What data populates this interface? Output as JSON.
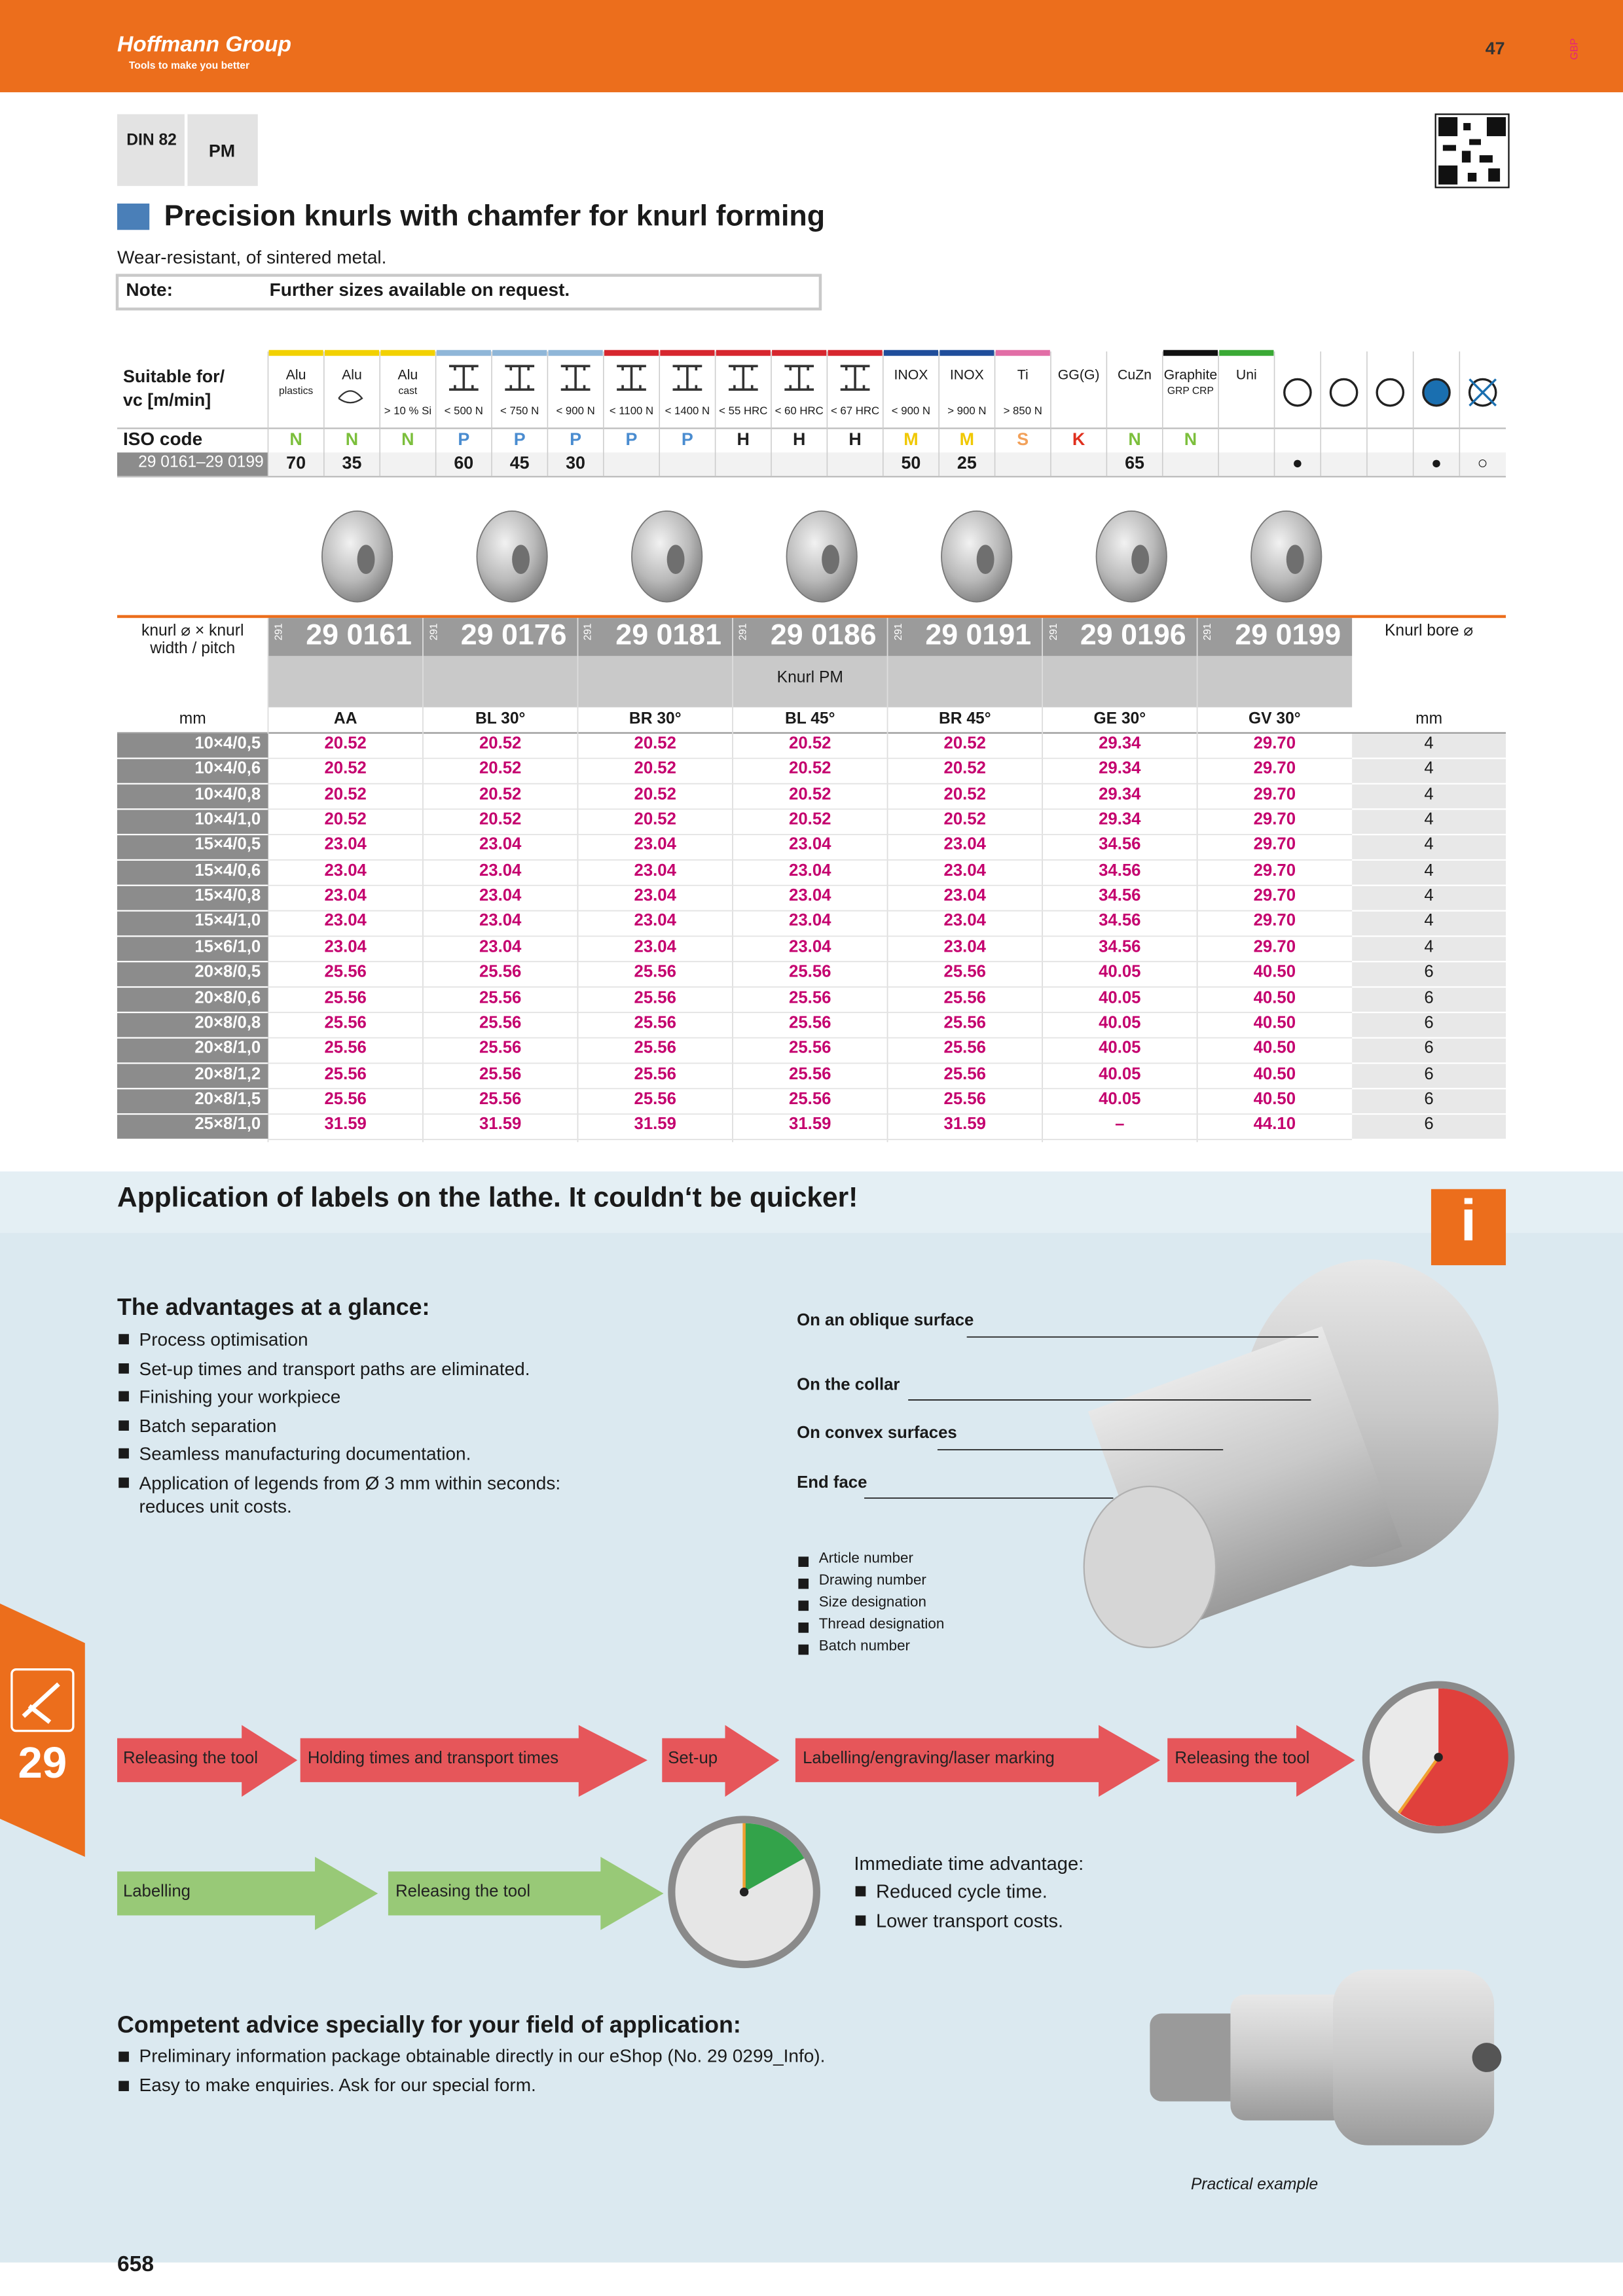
{
  "header": {
    "brand": "Hoffmann Group",
    "tagline": "Tools to make you better",
    "page_tab": "47",
    "region": "GBP"
  },
  "badges": [
    "DIN 82",
    "PM"
  ],
  "title": "Precision knurls with chamfer for knurl forming",
  "subtitle": "Wear-resistant, of sintered metal.",
  "note": {
    "label": "Note:",
    "text": "Further sizes available on request."
  },
  "suitability": {
    "label_lines": [
      "Suitable for/",
      "vc [m/min]"
    ],
    "iso_label": "ISO code",
    "range_label": "29 0161–29 0199",
    "columns": [
      {
        "name": "Alu",
        "sub": "plastics",
        "limit": null,
        "iso": "N",
        "value": 70,
        "color": "#f2d100"
      },
      {
        "name": "Alu",
        "sub": null,
        "limit": null,
        "iso": "N",
        "value": 35,
        "color": "#f2d100"
      },
      {
        "name": "Alu",
        "sub": "cast",
        "limit": "> 10 % Si",
        "iso": "N",
        "value": null,
        "color": "#f2d100"
      },
      {
        "name": null,
        "sub": null,
        "limit": "< 500 N",
        "iso": "P",
        "value": 60,
        "color": "#8fb6d8"
      },
      {
        "name": null,
        "sub": null,
        "limit": "< 750 N",
        "iso": "P",
        "value": 45,
        "color": "#8fb6d8"
      },
      {
        "name": null,
        "sub": null,
        "limit": "< 900 N",
        "iso": "P",
        "value": 30,
        "color": "#8fb6d8"
      },
      {
        "name": null,
        "sub": null,
        "limit": "< 1100 N",
        "iso": "P",
        "value": null,
        "color": "#d7262e"
      },
      {
        "name": null,
        "sub": null,
        "limit": "< 1400 N",
        "iso": "P",
        "value": null,
        "color": "#d7262e"
      },
      {
        "name": null,
        "sub": null,
        "limit": "< 55 HRC",
        "iso": "H",
        "value": null,
        "color": "#d7262e"
      },
      {
        "name": null,
        "sub": null,
        "limit": "< 60 HRC",
        "iso": "H",
        "value": null,
        "color": "#d7262e"
      },
      {
        "name": null,
        "sub": null,
        "limit": "< 67 HRC",
        "iso": "H",
        "value": null,
        "color": "#d7262e"
      },
      {
        "name": "INOX",
        "sub": null,
        "limit": "< 900 N",
        "iso": "M",
        "value": 50,
        "color": "#1f4d9b"
      },
      {
        "name": "INOX",
        "sub": null,
        "limit": "> 900 N",
        "iso": "M",
        "value": 25,
        "color": "#1f4d9b"
      },
      {
        "name": "Ti",
        "sub": null,
        "limit": "> 850 N",
        "iso": "S",
        "value": null,
        "color": "#e26ea6"
      },
      {
        "name": "GG(G)",
        "sub": null,
        "limit": null,
        "iso": "K",
        "value": null,
        "color": null
      },
      {
        "name": "CuZn",
        "sub": null,
        "limit": null,
        "iso": "N",
        "value": 65,
        "color": null
      },
      {
        "name": "Graphite",
        "sub": "GRP CRP",
        "limit": null,
        "iso": "N",
        "value": null,
        "color": "#111111"
      },
      {
        "name": "Uni",
        "sub": null,
        "limit": null,
        "iso": null,
        "value": null,
        "color": "#3aa935"
      }
    ],
    "iso_colors": {
      "N": "#7cbf3c",
      "P": "#4a8cd0",
      "H": "#222222",
      "M": "#f0c800",
      "S": "#f2a15a",
      "K": "#e0301e"
    },
    "symbol_marks": [
      "●",
      null,
      null,
      "●",
      "○"
    ]
  },
  "products": {
    "label_lines": [
      "knurl ⌀ × knurl",
      "width / pitch"
    ],
    "bore_label": "Knurl bore ⌀",
    "type_label": "Knurl PM",
    "unit": "mm",
    "bore_unit": "mm",
    "article_prefix": "291",
    "articles": [
      "29 0161",
      "29 0176",
      "29 0181",
      "29 0186",
      "29 0191",
      "29 0196",
      "29 0199"
    ],
    "profiles": [
      "AA",
      "BL 30°",
      "BR 30°",
      "BL 45°",
      "BR 45°",
      "GE 30°",
      "GV 30°"
    ],
    "rows": [
      {
        "size": "10×4/0,5",
        "prices": [
          "20.52",
          "20.52",
          "20.52",
          "20.52",
          "20.52",
          "29.34",
          "29.70"
        ],
        "bore": 4
      },
      {
        "size": "10×4/0,6",
        "prices": [
          "20.52",
          "20.52",
          "20.52",
          "20.52",
          "20.52",
          "29.34",
          "29.70"
        ],
        "bore": 4
      },
      {
        "size": "10×4/0,8",
        "prices": [
          "20.52",
          "20.52",
          "20.52",
          "20.52",
          "20.52",
          "29.34",
          "29.70"
        ],
        "bore": 4
      },
      {
        "size": "10×4/1,0",
        "prices": [
          "20.52",
          "20.52",
          "20.52",
          "20.52",
          "20.52",
          "29.34",
          "29.70"
        ],
        "bore": 4
      },
      {
        "size": "15×4/0,5",
        "prices": [
          "23.04",
          "23.04",
          "23.04",
          "23.04",
          "23.04",
          "34.56",
          "29.70"
        ],
        "bore": 4
      },
      {
        "size": "15×4/0,6",
        "prices": [
          "23.04",
          "23.04",
          "23.04",
          "23.04",
          "23.04",
          "34.56",
          "29.70"
        ],
        "bore": 4
      },
      {
        "size": "15×4/0,8",
        "prices": [
          "23.04",
          "23.04",
          "23.04",
          "23.04",
          "23.04",
          "34.56",
          "29.70"
        ],
        "bore": 4
      },
      {
        "size": "15×4/1,0",
        "prices": [
          "23.04",
          "23.04",
          "23.04",
          "23.04",
          "23.04",
          "34.56",
          "29.70"
        ],
        "bore": 4
      },
      {
        "size": "15×6/1,0",
        "prices": [
          "23.04",
          "23.04",
          "23.04",
          "23.04",
          "23.04",
          "34.56",
          "29.70"
        ],
        "bore": 4
      },
      {
        "size": "20×8/0,5",
        "prices": [
          "25.56",
          "25.56",
          "25.56",
          "25.56",
          "25.56",
          "40.05",
          "40.50"
        ],
        "bore": 6
      },
      {
        "size": "20×8/0,6",
        "prices": [
          "25.56",
          "25.56",
          "25.56",
          "25.56",
          "25.56",
          "40.05",
          "40.50"
        ],
        "bore": 6
      },
      {
        "size": "20×8/0,8",
        "prices": [
          "25.56",
          "25.56",
          "25.56",
          "25.56",
          "25.56",
          "40.05",
          "40.50"
        ],
        "bore": 6
      },
      {
        "size": "20×8/1,0",
        "prices": [
          "25.56",
          "25.56",
          "25.56",
          "25.56",
          "25.56",
          "40.05",
          "40.50"
        ],
        "bore": 6
      },
      {
        "size": "20×8/1,2",
        "prices": [
          "25.56",
          "25.56",
          "25.56",
          "25.56",
          "25.56",
          "40.05",
          "40.50"
        ],
        "bore": 6
      },
      {
        "size": "20×8/1,5",
        "prices": [
          "25.56",
          "25.56",
          "25.56",
          "25.56",
          "25.56",
          "40.05",
          "40.50"
        ],
        "bore": 6
      },
      {
        "size": "25×8/1,0",
        "prices": [
          "31.59",
          "31.59",
          "31.59",
          "31.59",
          "31.59",
          "–",
          "44.10"
        ],
        "bore": 6
      }
    ]
  },
  "info": {
    "title": "Application of labels on the lathe. It couldn‘t be quicker!",
    "icon": "i",
    "advantages_title": "The advantages at a glance:",
    "advantages": [
      "Process optimisation",
      "Set-up times and transport paths are eliminated.",
      "Finishing your workpiece",
      "Batch separation",
      "Seamless manufacturing documentation.",
      "Application of legends from Ø 3 mm within seconds: reduces unit costs."
    ],
    "surfaces": [
      "On an oblique surface",
      "On the collar",
      "On convex surfaces",
      "End face"
    ],
    "legend_items": [
      "Article number",
      "Drawing number",
      "Size designation",
      "Thread designation",
      "Batch number"
    ],
    "conventional_steps": [
      "Releasing the tool",
      "Holding times and transport times",
      "Set-up",
      "Labelling/engraving/laser marking",
      "Releasing the tool"
    ],
    "new_steps": [
      "Labelling",
      "Releasing the tool"
    ],
    "time_advantage_title": "Immediate time advantage:",
    "time_advantages": [
      "Reduced cycle time.",
      "Lower transport costs."
    ],
    "advice_title": "Competent advice specially for your field of application:",
    "advice": [
      "Preliminary information package obtainable directly in our eShop (No. 29 0299_Info).",
      "Easy to make enquiries. Ask for our special form."
    ],
    "photo_caption": "Practical example"
  },
  "side_tab": "29",
  "page_number": "658"
}
